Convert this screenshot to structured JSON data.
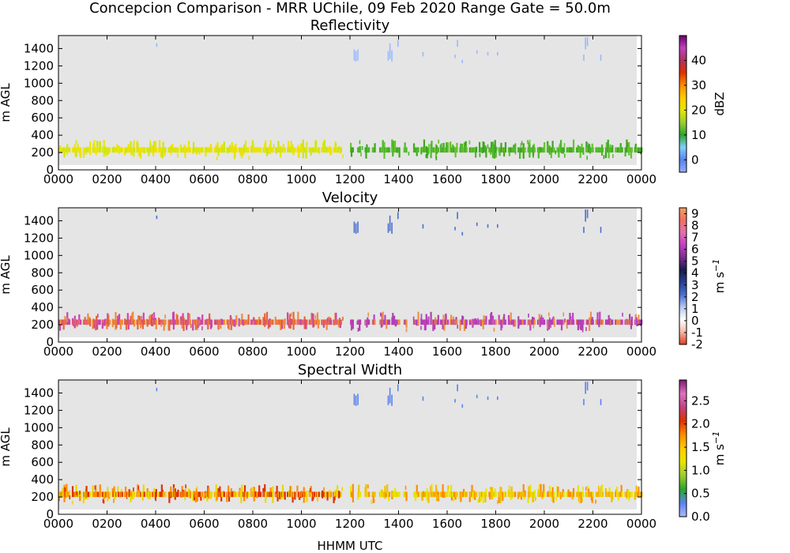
{
  "figure": {
    "title": "Concepcion Comparison - MRR UChile, 09 Feb 2020 Range Gate = 50.0m",
    "xlabel": "HHMM UTC"
  },
  "chart_data": [
    {
      "type": "heatmap",
      "title": "Reflectivity",
      "ylabel": "m AGL",
      "x_ticks": [
        "0000",
        "0200",
        "0400",
        "0600",
        "0800",
        "1000",
        "1200",
        "1400",
        "1600",
        "1800",
        "2000",
        "2200",
        "0000"
      ],
      "y_ticks": [
        "0",
        "200",
        "400",
        "600",
        "800",
        "1000",
        "1200",
        "1400"
      ],
      "xlim_hours": [
        0,
        24
      ],
      "ylim": [
        0,
        1550
      ],
      "no_data_color": "#e5e5e5",
      "colorbar": {
        "label": "dBZ",
        "range": [
          -5,
          50
        ],
        "ticks": [
          "0",
          "10",
          "20",
          "30",
          "40"
        ],
        "tick_values": [
          0,
          10,
          20,
          30,
          40
        ],
        "colors": [
          "#8fb0ff",
          "#5a82ee",
          "#7fd0ff",
          "#2aa52a",
          "#9acd32",
          "#e6e600",
          "#ffcc00",
          "#ff8c00",
          "#e03000",
          "#b03060",
          "#c040c0",
          "#6a006a"
        ]
      },
      "low_band": {
        "y_range": [
          200,
          260
        ],
        "description": "near-surface echoes all day",
        "early_colors": [
          "#c8e619",
          "#e6e60a",
          "#f0e000"
        ],
        "late_colors": [
          "#4cb82a",
          "#3ea520",
          "#66c233"
        ]
      },
      "upper_echoes": {
        "y_range": [
          1240,
          1500
        ],
        "color": "#9ab8ff"
      }
    },
    {
      "type": "heatmap",
      "title": "Velocity",
      "ylabel": "m $s^{-1}$",
      "x_ticks": [
        "0000",
        "0200",
        "0400",
        "0600",
        "0800",
        "1000",
        "1200",
        "1400",
        "1600",
        "1800",
        "2000",
        "2200",
        "0000"
      ],
      "y_ticks": [
        "0",
        "200",
        "400",
        "600",
        "800",
        "1000",
        "1200",
        "1400"
      ],
      "xlim_hours": [
        0,
        24
      ],
      "ylim": [
        0,
        1550
      ],
      "no_data_color": "#e5e5e5",
      "colorbar": {
        "label": "m s",
        "label_superscript": "−1",
        "range": [
          -2,
          9.5
        ],
        "ticks": [
          "-2",
          "-1",
          "0",
          "1",
          "2",
          "3",
          "4",
          "5",
          "6",
          "7",
          "8",
          "9"
        ],
        "tick_values": [
          -2,
          -1,
          0,
          1,
          2,
          3,
          4,
          5,
          6,
          7,
          8,
          9
        ],
        "colors": [
          "#e33b1a",
          "#f5b8a8",
          "#ffffff",
          "#b7c8ee",
          "#4a6fd0",
          "#2a3f8f",
          "#1a1a4a",
          "#7b2c8f",
          "#c040c0",
          "#e070b0",
          "#f07060",
          "#f2a060"
        ]
      },
      "low_band": {
        "y_range": [
          200,
          260
        ],
        "description": "near-surface echoes all day",
        "early_colors": [
          "#f08a3a",
          "#e8643a",
          "#cc44aa"
        ],
        "late_colors": [
          "#b040b0",
          "#c040c0",
          "#f09040"
        ]
      },
      "upper_echoes": {
        "y_range": [
          1240,
          1500
        ],
        "color": "#4a6fd0"
      }
    },
    {
      "type": "heatmap",
      "title": "Spectral Width",
      "ylabel": "m AGL",
      "x_ticks": [
        "0000",
        "0200",
        "0400",
        "0600",
        "0800",
        "1000",
        "1200",
        "1400",
        "1600",
        "1800",
        "2000",
        "2200",
        "0000"
      ],
      "y_ticks": [
        "0",
        "200",
        "400",
        "600",
        "800",
        "1000",
        "1200",
        "1400"
      ],
      "xlim_hours": [
        0,
        24
      ],
      "ylim": [
        0,
        1550
      ],
      "no_data_color": "#e5e5e5",
      "colorbar": {
        "label": "m s",
        "label_superscript": "−1",
        "range": [
          0,
          2.95
        ],
        "ticks": [
          "0.0",
          "0.5",
          "1.0",
          "1.5",
          "2.0",
          "2.5"
        ],
        "tick_values": [
          0,
          0.5,
          1,
          1.5,
          2,
          2.5
        ],
        "colors": [
          "#aab8ff",
          "#5a82ee",
          "#2aa52a",
          "#9acd32",
          "#e6e600",
          "#ffcc00",
          "#ff8c00",
          "#e03000",
          "#c04080",
          "#e070c0",
          "#7a1a6a"
        ]
      },
      "low_band": {
        "y_range": [
          200,
          260
        ],
        "description": "near-surface echoes all day",
        "early_colors": [
          "#e8d800",
          "#ff8c00",
          "#e03000"
        ],
        "late_colors": [
          "#e6e600",
          "#f0c000",
          "#ff8c00"
        ]
      },
      "upper_echoes": {
        "y_range": [
          1240,
          1500
        ],
        "color": "#5a82ee"
      }
    }
  ],
  "echo_segments": [
    [
      0.0,
      0.08
    ],
    [
      0.12,
      0.45
    ],
    [
      0.55,
      0.9
    ],
    [
      1.0,
      1.3
    ],
    [
      1.38,
      1.7
    ],
    [
      1.78,
      2.1
    ],
    [
      2.2,
      2.6
    ],
    [
      2.7,
      3.1
    ],
    [
      3.2,
      3.5
    ],
    [
      3.6,
      4.0
    ],
    [
      4.1,
      4.4
    ],
    [
      4.5,
      4.9
    ],
    [
      5.0,
      5.4
    ],
    [
      5.5,
      5.9
    ],
    [
      6.0,
      6.3
    ],
    [
      6.4,
      6.8
    ],
    [
      6.9,
      7.3
    ],
    [
      7.4,
      7.8
    ],
    [
      7.9,
      8.3
    ],
    [
      8.4,
      8.8
    ],
    [
      8.9,
      9.3
    ],
    [
      9.4,
      9.7
    ],
    [
      9.8,
      10.2
    ],
    [
      10.3,
      10.7
    ],
    [
      10.8,
      11.2
    ],
    [
      11.3,
      11.6
    ],
    [
      12.0,
      12.1
    ],
    [
      12.3,
      12.4
    ],
    [
      12.6,
      12.75
    ],
    [
      12.9,
      13.0
    ],
    [
      13.2,
      13.6
    ],
    [
      13.7,
      14.0
    ],
    [
      14.2,
      14.3
    ],
    [
      14.6,
      14.8
    ],
    [
      14.9,
      15.2
    ],
    [
      15.3,
      15.6
    ],
    [
      15.7,
      16.0
    ],
    [
      16.1,
      16.4
    ],
    [
      16.5,
      16.8
    ],
    [
      16.9,
      17.2
    ],
    [
      17.3,
      17.6
    ],
    [
      17.7,
      18.0
    ],
    [
      18.1,
      18.4
    ],
    [
      18.5,
      18.8
    ],
    [
      18.9,
      19.2
    ],
    [
      19.3,
      19.6
    ],
    [
      19.7,
      20.0
    ],
    [
      20.1,
      20.4
    ],
    [
      20.5,
      20.8
    ],
    [
      20.9,
      21.2
    ],
    [
      21.3,
      21.6
    ],
    [
      21.7,
      22.0
    ],
    [
      22.1,
      22.4
    ],
    [
      22.5,
      22.8
    ],
    [
      22.9,
      23.2
    ],
    [
      23.3,
      23.6
    ],
    [
      23.7,
      24.0
    ]
  ],
  "upper_columns": [
    {
      "x": 4.02,
      "y0": 1420,
      "y1": 1460
    },
    {
      "x": 12.15,
      "y0": 1260,
      "y1": 1390
    },
    {
      "x": 12.22,
      "y0": 1250,
      "y1": 1370
    },
    {
      "x": 12.3,
      "y0": 1260,
      "y1": 1390
    },
    {
      "x": 13.55,
      "y0": 1260,
      "y1": 1370
    },
    {
      "x": 13.62,
      "y0": 1280,
      "y1": 1460
    },
    {
      "x": 13.7,
      "y0": 1250,
      "y1": 1380
    },
    {
      "x": 13.95,
      "y0": 1420,
      "y1": 1500
    },
    {
      "x": 14.98,
      "y0": 1310,
      "y1": 1360
    },
    {
      "x": 16.3,
      "y0": 1290,
      "y1": 1330
    },
    {
      "x": 16.4,
      "y0": 1420,
      "y1": 1500
    },
    {
      "x": 16.6,
      "y0": 1230,
      "y1": 1270
    },
    {
      "x": 17.2,
      "y0": 1340,
      "y1": 1380
    },
    {
      "x": 17.65,
      "y0": 1320,
      "y1": 1360
    },
    {
      "x": 18.05,
      "y0": 1320,
      "y1": 1360
    },
    {
      "x": 21.6,
      "y0": 1260,
      "y1": 1330
    },
    {
      "x": 21.67,
      "y0": 1390,
      "y1": 1530
    },
    {
      "x": 21.75,
      "y0": 1430,
      "y1": 1530
    },
    {
      "x": 22.3,
      "y0": 1260,
      "y1": 1330
    }
  ]
}
